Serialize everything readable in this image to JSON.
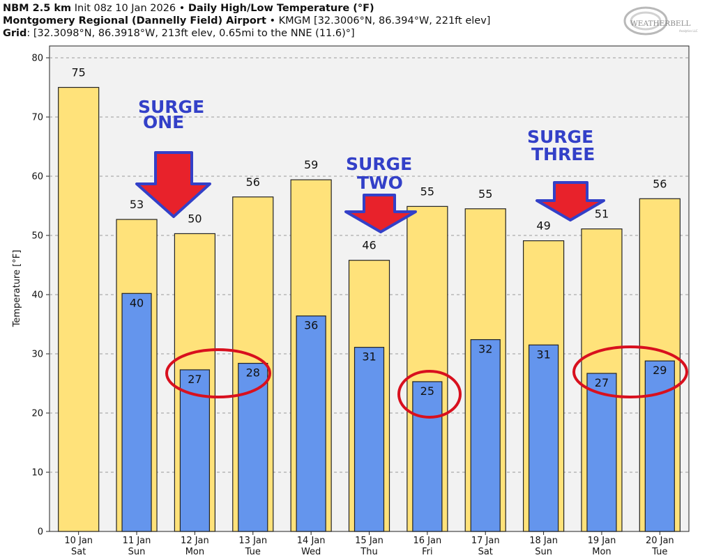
{
  "header": {
    "line1_bold_a": "NBM 2.5 km",
    "line1_text": " Init 08z 10 Jan 2026 • ",
    "line1_bold_b": "Daily High/Low Temperature (°F)",
    "line2_bold": "Montgomery Regional (Dannelly Field) Airport",
    "line2_text": " • KMGM [32.3006°N, 86.394°W, 221ft elev]",
    "line3_bold": "Grid",
    "line3_text": ": [32.3098°N, 86.3918°W, 213ft elev, 0.65mi to the NNE (11.6)°]"
  },
  "logo": {
    "text": "WEATHERBELL",
    "subtext": "Analytics LLC"
  },
  "chart_data": {
    "type": "bar",
    "categories": [
      "10 Jan",
      "11 Jan",
      "12 Jan",
      "13 Jan",
      "14 Jan",
      "15 Jan",
      "16 Jan",
      "17 Jan",
      "18 Jan",
      "19 Jan",
      "20 Jan"
    ],
    "weekdays": [
      "Sat",
      "Sun",
      "Mon",
      "Tue",
      "Wed",
      "Thu",
      "Fri",
      "Sat",
      "Sun",
      "Mon",
      "Tue"
    ],
    "series": [
      {
        "values": [
          75,
          52.7,
          50.3,
          56.5,
          59.4,
          45.8,
          54.9,
          54.5,
          49.1,
          51.1,
          56.2
        ],
        "labels": [
          "75",
          "53",
          "50",
          "56",
          "59",
          "46",
          "55",
          "55",
          "49",
          "51",
          "56"
        ],
        "color": "#ffe27a"
      },
      {
        "values": [
          null,
          40.2,
          27.3,
          28.4,
          36.4,
          31.1,
          25.3,
          32.4,
          31.5,
          26.7,
          28.8
        ],
        "labels": [
          "",
          "40",
          "27",
          "28",
          "36",
          "31",
          "25",
          "32",
          "31",
          "27",
          "29"
        ],
        "color": "#6495ed"
      }
    ],
    "ylabel": "Temperature [°F]",
    "ylim": [
      0,
      82
    ],
    "yticks": [
      0,
      10,
      20,
      30,
      40,
      50,
      60,
      70,
      80
    ],
    "grid": true,
    "annotations": {
      "surges": [
        {
          "lines": [
            "SURGE",
            "ONE"
          ]
        },
        {
          "lines": [
            "SURGE",
            "TWO"
          ]
        },
        {
          "lines": [
            "SURGE",
            "THREE"
          ]
        }
      ],
      "arrow_color": "#e8222b",
      "circle_color": "#d8101e"
    }
  }
}
